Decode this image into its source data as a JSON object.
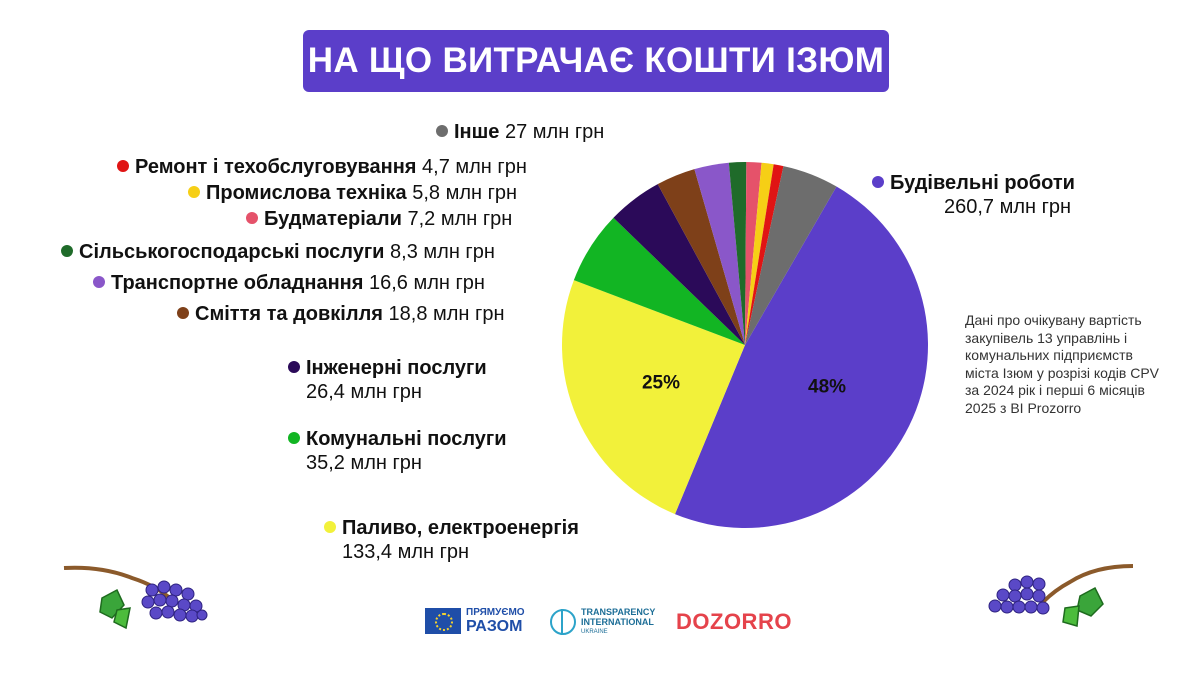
{
  "title": "НА ЩО ВИТРАЧАЄ КОШТИ ІЗЮМ",
  "note": "Дані про очікувану вартість закупівель 13 управлінь і комунальних підприємств міста Ізюм у розрізі кодів CPV за 2024 рік і перші 6 місяців 2025 з BI Prozorro",
  "chart_data": {
    "type": "pie",
    "title": "НА ЩО ВИТРАЧАЄ КОШТИ ІЗЮМ",
    "unit": "млн грн",
    "slices": [
      {
        "name": "Будівельні роботи",
        "value": 260.7,
        "value_label": "260,7 млн грн",
        "color": "#5b3ec9",
        "pct_label": "48%"
      },
      {
        "name": "Паливо, електроенергія",
        "value": 133.4,
        "value_label": "133,4 млн грн",
        "color": "#f2f13a",
        "pct_label": "25%"
      },
      {
        "name": "Комунальні послуги",
        "value": 35.2,
        "value_label": "35,2 млн грн",
        "color": "#12b523",
        "pct_label": ""
      },
      {
        "name": "Інженерні послуги",
        "value": 26.4,
        "value_label": "26,4 млн грн",
        "color": "#2b0a59",
        "pct_label": ""
      },
      {
        "name": "Сміття та довкілля",
        "value": 18.8,
        "value_label": "18,8 млн грн",
        "color": "#7e4019",
        "pct_label": ""
      },
      {
        "name": "Транспортне обладнання",
        "value": 16.6,
        "value_label": "16,6 млн грн",
        "color": "#8a57c9",
        "pct_label": ""
      },
      {
        "name": "Сільськогосподарські послуги",
        "value": 8.3,
        "value_label": "8,3 млн грн",
        "color": "#1f6b2a",
        "pct_label": ""
      },
      {
        "name": "Будматеріали",
        "value": 7.2,
        "value_label": "7,2 млн грн",
        "color": "#e5526a",
        "pct_label": ""
      },
      {
        "name": "Промислова техніка",
        "value": 5.8,
        "value_label": "5,8 млн грн",
        "color": "#f6cf16",
        "pct_label": ""
      },
      {
        "name": "Ремонт і техобслуговування",
        "value": 4.7,
        "value_label": "4,7 млн грн",
        "color": "#e01414",
        "pct_label": ""
      },
      {
        "name": "Інше",
        "value": 27,
        "value_label": "27 млн грн",
        "color": "#6d6d6d",
        "pct_label": ""
      }
    ]
  },
  "logos": {
    "eu_line1": "ПРЯМУЄМО",
    "eu_line2": "РАЗОМ",
    "ti_line1": "TRANSPARENCY",
    "ti_line2": "INTERNATIONAL",
    "ti_line3": "UKRAINE",
    "dozorro": "DOZORRO"
  }
}
